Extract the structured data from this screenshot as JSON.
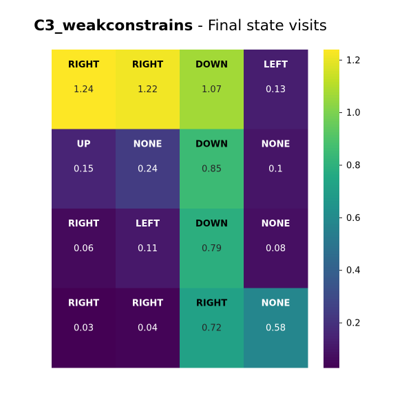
{
  "chart_data": {
    "type": "heatmap",
    "title": {
      "bold": "C3_weakconstrains",
      "rest": " - Final state visits"
    },
    "rows": 4,
    "cols": 4,
    "actions": [
      [
        "RIGHT",
        "RIGHT",
        "DOWN",
        "LEFT"
      ],
      [
        "UP",
        "NONE",
        "DOWN",
        "NONE"
      ],
      [
        "RIGHT",
        "LEFT",
        "DOWN",
        "NONE"
      ],
      [
        "RIGHT",
        "RIGHT",
        "RIGHT",
        "NONE"
      ]
    ],
    "values": [
      [
        1.24,
        1.22,
        1.07,
        0.13
      ],
      [
        0.15,
        0.24,
        0.85,
        0.1
      ],
      [
        0.06,
        0.11,
        0.79,
        0.08
      ],
      [
        0.03,
        0.04,
        0.72,
        0.58
      ]
    ],
    "value_labels": [
      [
        "1.24",
        "1.22",
        "1.07",
        "0.13"
      ],
      [
        "0.15",
        "0.24",
        "0.85",
        "0.1"
      ],
      [
        "0.06",
        "0.11",
        "0.79",
        "0.08"
      ],
      [
        "0.03",
        "0.04",
        "0.72",
        "0.58"
      ]
    ],
    "colormap": "viridis",
    "colorbar": {
      "vmin": 0.03,
      "vmax": 1.24,
      "ticks": [
        0.2,
        0.4,
        0.6,
        0.8,
        1.0,
        1.2
      ],
      "tick_labels": [
        "0.2",
        "0.4",
        "0.6",
        "0.8",
        "1.0",
        "1.2"
      ]
    }
  }
}
